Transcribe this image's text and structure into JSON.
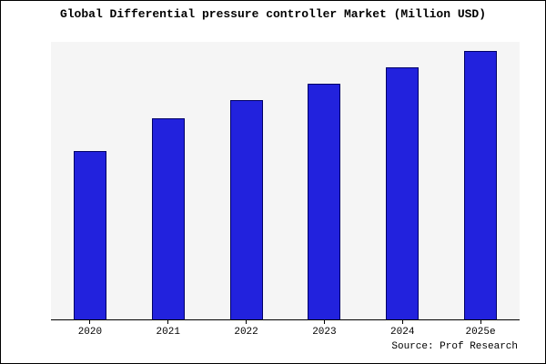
{
  "title": "Global Differential pressure controller Market (Million USD)",
  "source": "Source: Prof Research",
  "colors": {
    "bar_fill": "#2222dd",
    "bar_border": "#000066",
    "plot_bg": "#f5f5f5"
  },
  "chart_data": {
    "type": "bar",
    "categories": [
      "2020",
      "2021",
      "2022",
      "2023",
      "2024",
      "2025e"
    ],
    "values": [
      188,
      225,
      245,
      263,
      282,
      300
    ],
    "title": "Global Differential pressure controller Market (Million USD)",
    "xlabel": "",
    "ylabel": "",
    "ylim": [
      0,
      310
    ],
    "grid": false,
    "legend": false,
    "annotations": [
      "Source: Prof Research"
    ]
  }
}
